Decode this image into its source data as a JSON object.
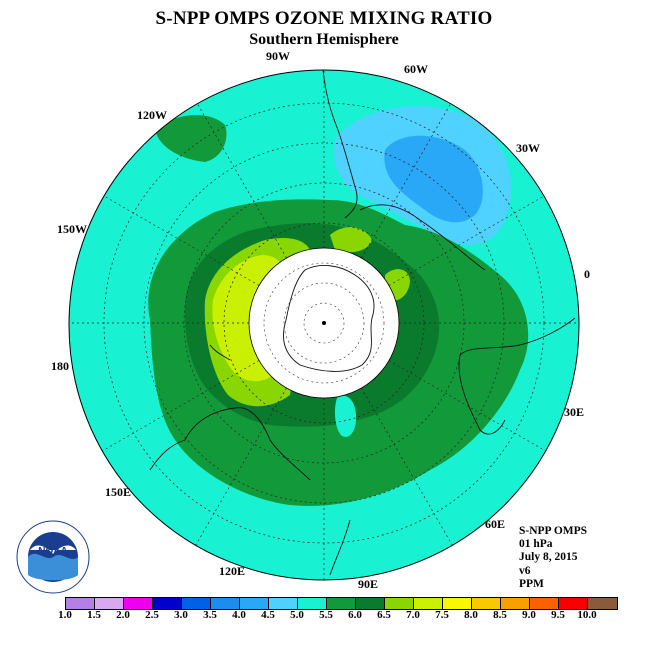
{
  "header": {
    "title": "S-NPP OMPS OZONE MIXING RATIO",
    "subtitle": "Southern Hemisphere"
  },
  "longitude_labels": {
    "lon_90w": "90W",
    "lon_60w": "60W",
    "lon_30w": "30W",
    "lon_0": "0",
    "lon_30e": "30E",
    "lon_60e": "60E",
    "lon_90e": "90E",
    "lon_120e": "120E",
    "lon_150e": "150E",
    "lon_180": "180",
    "lon_150w": "150W",
    "lon_120w": "120W"
  },
  "info": {
    "instrument": "S-NPP OMPS",
    "level": "01 hPa",
    "date": "July 8, 2015",
    "version": "v6",
    "units": "PPM"
  },
  "logo": {
    "text": "NOAA",
    "ring_text": "NATIONAL OCEANIC AND ATMOSPHERIC ADMINISTRATION",
    "ring_text_bottom": "U.S. DEPARTMENT OF COMMERCE"
  },
  "colorbar": {
    "labels": [
      "1.0",
      "1.5",
      "2.0",
      "2.5",
      "3.0",
      "3.5",
      "4.0",
      "4.5",
      "5.0",
      "5.5",
      "6.0",
      "6.5",
      "7.0",
      "7.5",
      "8.0",
      "8.5",
      "9.0",
      "9.5",
      "10.0"
    ],
    "colors": [
      "#b57fe8",
      "#d8a8f0",
      "#ee00ee",
      "#0000cc",
      "#0060e8",
      "#1c8cf0",
      "#2aa8f8",
      "#4fd2ff",
      "#19f2d2",
      "#129a3a",
      "#0a7a2c",
      "#8ad600",
      "#c8f000",
      "#f8f800",
      "#f8c800",
      "#f8a000",
      "#f86000",
      "#f80000",
      "#8a5a3a"
    ]
  },
  "legend_colors": {
    "background_4_5_5_0": "#19f2d2",
    "band_5_0_5_5": "#129a3a",
    "band_5_5_6_0": "#0a7a2c",
    "band_6_5_7_0": "#8ad600",
    "band_7_0_7_5": "#c8f000",
    "band_3_5_4_0": "#2aa8f8",
    "band_4_0_4_5": "#4fd2ff"
  }
}
